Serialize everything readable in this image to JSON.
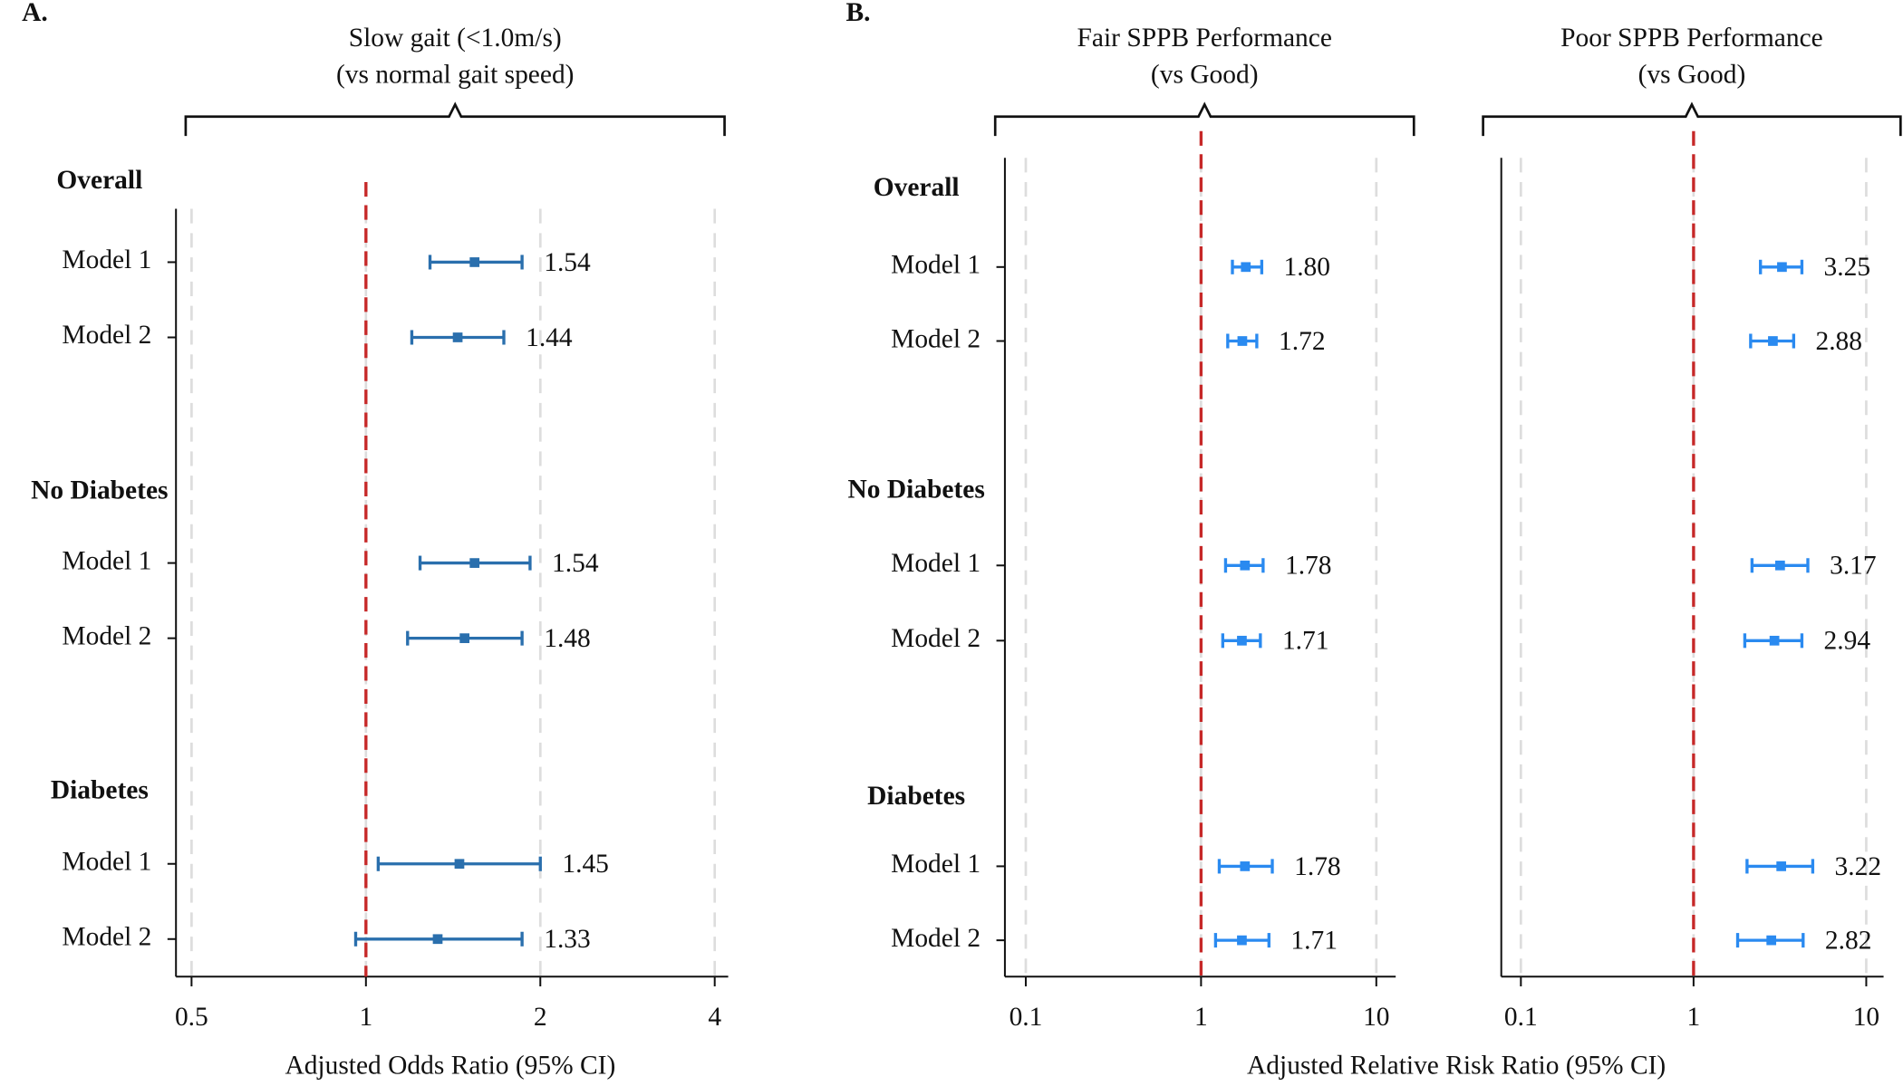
{
  "chart_data": [
    {
      "type": "forest",
      "panel_label": "A.",
      "title": [
        "Slow gait (<1.0m/s)",
        "(vs normal gait speed)"
      ],
      "xlabel": "Adjusted Odds Ratio (95% CI)",
      "log": true,
      "xlim": [
        0.47,
        4.22
      ],
      "xticks": [
        0.5,
        1,
        2,
        4
      ],
      "reference": 1,
      "reference_color": "#c62828",
      "color": "#2a6fad",
      "grid": true,
      "groups": [
        {
          "name": "Overall",
          "rows": [
            "Model 1",
            "Model 2"
          ],
          "values": [
            1.54,
            1.44
          ],
          "ci_low": [
            1.29,
            1.2
          ],
          "ci_high": [
            1.86,
            1.73
          ],
          "value_labels": [
            "1.54",
            "1.44"
          ]
        },
        {
          "name": "No Diabetes",
          "rows": [
            "Model 1",
            "Model 2"
          ],
          "values": [
            1.54,
            1.48
          ],
          "ci_low": [
            1.24,
            1.18
          ],
          "ci_high": [
            1.92,
            1.86
          ],
          "value_labels": [
            "1.54",
            "1.48"
          ]
        },
        {
          "name": "Diabetes",
          "rows": [
            "Model 1",
            "Model 2"
          ],
          "values": [
            1.45,
            1.33
          ],
          "ci_low": [
            1.05,
            0.96
          ],
          "ci_high": [
            2.0,
            1.86
          ],
          "value_labels": [
            "1.45",
            "1.33"
          ]
        }
      ]
    },
    {
      "type": "forest",
      "panel_label": "B.",
      "title": [
        "Fair SPPB Performance",
        "(vs Good)"
      ],
      "xlabel": "Adjusted Relative Risk Ratio (95% CI)",
      "log": true,
      "xlim": [
        0.076,
        12.9
      ],
      "xticks": [
        0.1,
        1,
        10
      ],
      "reference": 1,
      "reference_color": "#c62828",
      "color": "#2a8af0",
      "grid": true,
      "groups": [
        {
          "name": "Overall",
          "rows": [
            "Model 1",
            "Model 2"
          ],
          "values": [
            1.8,
            1.72
          ],
          "ci_low": [
            1.51,
            1.42
          ],
          "ci_high": [
            2.22,
            2.08
          ],
          "value_labels": [
            "1.80",
            "1.72"
          ]
        },
        {
          "name": "No Diabetes",
          "rows": [
            "Model 1",
            "Model 2"
          ],
          "values": [
            1.78,
            1.71
          ],
          "ci_low": [
            1.38,
            1.33
          ],
          "ci_high": [
            2.26,
            2.18
          ],
          "value_labels": [
            "1.78",
            "1.71"
          ]
        },
        {
          "name": "Diabetes",
          "rows": [
            "Model 1",
            "Model 2"
          ],
          "values": [
            1.78,
            1.71
          ],
          "ci_low": [
            1.27,
            1.21
          ],
          "ci_high": [
            2.55,
            2.44
          ],
          "value_labels": [
            "1.78",
            "1.71"
          ]
        }
      ]
    },
    {
      "type": "forest",
      "title": [
        "Poor SPPB Performance",
        "(vs Good)"
      ],
      "log": true,
      "xlim": [
        0.077,
        12.6
      ],
      "xticks": [
        0.1,
        1,
        10
      ],
      "reference": 1,
      "reference_color": "#c62828",
      "color": "#2a8af0",
      "grid": true,
      "groups": [
        {
          "values": [
            3.25,
            2.88
          ],
          "ci_low": [
            2.44,
            2.14
          ],
          "ci_high": [
            4.24,
            3.8
          ],
          "value_labels": [
            "3.25",
            "2.88"
          ]
        },
        {
          "values": [
            3.17,
            2.94
          ],
          "ci_low": [
            2.18,
            1.98
          ],
          "ci_high": [
            4.59,
            4.24
          ],
          "value_labels": [
            "3.17",
            "2.94"
          ]
        },
        {
          "values": [
            3.22,
            2.82
          ],
          "ci_low": [
            2.04,
            1.8
          ],
          "ci_high": [
            4.9,
            4.31
          ],
          "value_labels": [
            "3.22",
            "2.82"
          ]
        }
      ]
    }
  ]
}
